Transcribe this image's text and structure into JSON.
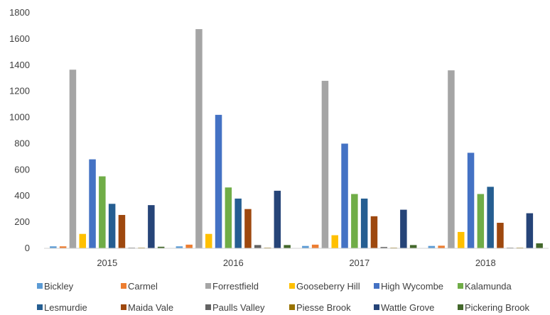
{
  "chart_data": {
    "type": "bar",
    "title": "",
    "xlabel": "",
    "ylabel": "",
    "ylim": [
      0,
      1800
    ],
    "yticks": [
      0,
      200,
      400,
      600,
      800,
      1000,
      1200,
      1400,
      1600,
      1800
    ],
    "grid": false,
    "legend_position": "bottom",
    "categories": [
      "2015",
      "2016",
      "2017",
      "2018"
    ],
    "series": [
      {
        "name": "Bickley",
        "color": "#5b9bd5",
        "values": [
          15,
          15,
          18,
          18
        ]
      },
      {
        "name": "Carmel",
        "color": "#ed7d31",
        "values": [
          15,
          28,
          28,
          20
        ]
      },
      {
        "name": "Forrestfield",
        "color": "#a5a5a5",
        "values": [
          1365,
          1675,
          1280,
          1360
        ]
      },
      {
        "name": "Gooseberry Hill",
        "color": "#ffc000",
        "values": [
          110,
          110,
          100,
          125
        ]
      },
      {
        "name": "High Wycombe",
        "color": "#4472c4",
        "values": [
          680,
          1020,
          800,
          730
        ]
      },
      {
        "name": "Kalamunda",
        "color": "#70ad47",
        "values": [
          550,
          465,
          415,
          415
        ]
      },
      {
        "name": "Lesmurdie",
        "color": "#255e91",
        "values": [
          340,
          380,
          380,
          470
        ]
      },
      {
        "name": "Maida Vale",
        "color": "#9e480e",
        "values": [
          255,
          300,
          245,
          195
        ]
      },
      {
        "name": "Paulls Valley",
        "color": "#636363",
        "values": [
          5,
          25,
          10,
          5
        ]
      },
      {
        "name": "Piesse Brook",
        "color": "#997300",
        "values": [
          5,
          5,
          5,
          5
        ]
      },
      {
        "name": "Wattle Grove",
        "color": "#264478",
        "values": [
          330,
          440,
          295,
          268
        ]
      },
      {
        "name": "Pickering Brook",
        "color": "#43682b",
        "values": [
          12,
          25,
          25,
          38
        ]
      }
    ]
  }
}
